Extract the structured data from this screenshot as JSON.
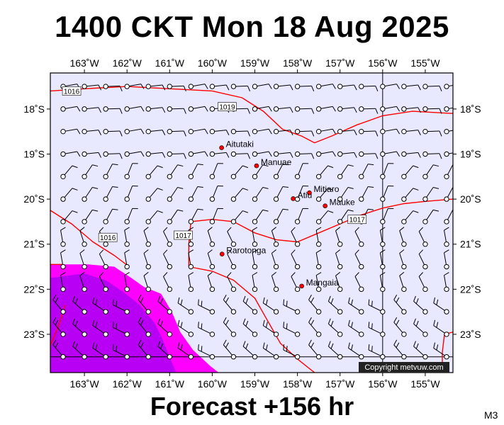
{
  "title": "1400 CKT Mon 18 Aug 2025",
  "footer": "Forecast +156 hr",
  "model": "M3",
  "copyright": "Copyright metvuw.com",
  "map": {
    "lon_min": -163.8,
    "lon_max": -154.35,
    "lat_max": -17.2,
    "lat_min": -23.85,
    "lon_ticks": [
      {
        "value": -163,
        "label": "163˚W"
      },
      {
        "value": -162,
        "label": "162˚W"
      },
      {
        "value": -161,
        "label": "161˚W"
      },
      {
        "value": -160,
        "label": "160˚W"
      },
      {
        "value": -159,
        "label": "159˚W"
      },
      {
        "value": -158,
        "label": "158˚W"
      },
      {
        "value": -157,
        "label": "157˚W"
      },
      {
        "value": -156,
        "label": "156˚W"
      },
      {
        "value": -155,
        "label": "155˚W"
      }
    ],
    "lat_ticks": [
      {
        "value": -18,
        "label": "18˚S"
      },
      {
        "value": -19,
        "label": "19˚S"
      },
      {
        "value": -20,
        "label": "20˚S"
      },
      {
        "value": -21,
        "label": "21˚S"
      },
      {
        "value": -22,
        "label": "22˚S"
      },
      {
        "value": -23,
        "label": "23˚S"
      }
    ],
    "places": [
      {
        "name": "Aitutaki",
        "lon": -159.78,
        "lat": -18.86
      },
      {
        "name": "Manuae",
        "lon": -158.96,
        "lat": -19.26
      },
      {
        "name": "Mitiaro",
        "lon": -157.72,
        "lat": -19.86
      },
      {
        "name": "Atiu",
        "lon": -158.1,
        "lat": -19.99
      },
      {
        "name": "Mauke",
        "lon": -157.35,
        "lat": -20.15
      },
      {
        "name": "Rarotonga",
        "lon": -159.77,
        "lat": -21.22
      },
      {
        "name": "Mangaia",
        "lon": -157.9,
        "lat": -21.93
      }
    ],
    "isobar_labels": [
      {
        "text": "1016",
        "lon": -163.3,
        "lat": -17.6
      },
      {
        "text": "1019",
        "lon": -159.65,
        "lat": -17.95
      },
      {
        "text": "1017",
        "lon": -156.6,
        "lat": -20.45
      },
      {
        "text": "1016",
        "lon": -162.45,
        "lat": -20.85
      },
      {
        "text": "1017",
        "lon": -160.68,
        "lat": -20.8
      }
    ],
    "colors": {
      "sea": "#e8e8ff",
      "isobar": "#ff0000",
      "rain_light": "#ff00ff",
      "rain_heavy": "#a000f0",
      "place_dot": "#ff0000",
      "wind_barb": "#000000"
    }
  }
}
